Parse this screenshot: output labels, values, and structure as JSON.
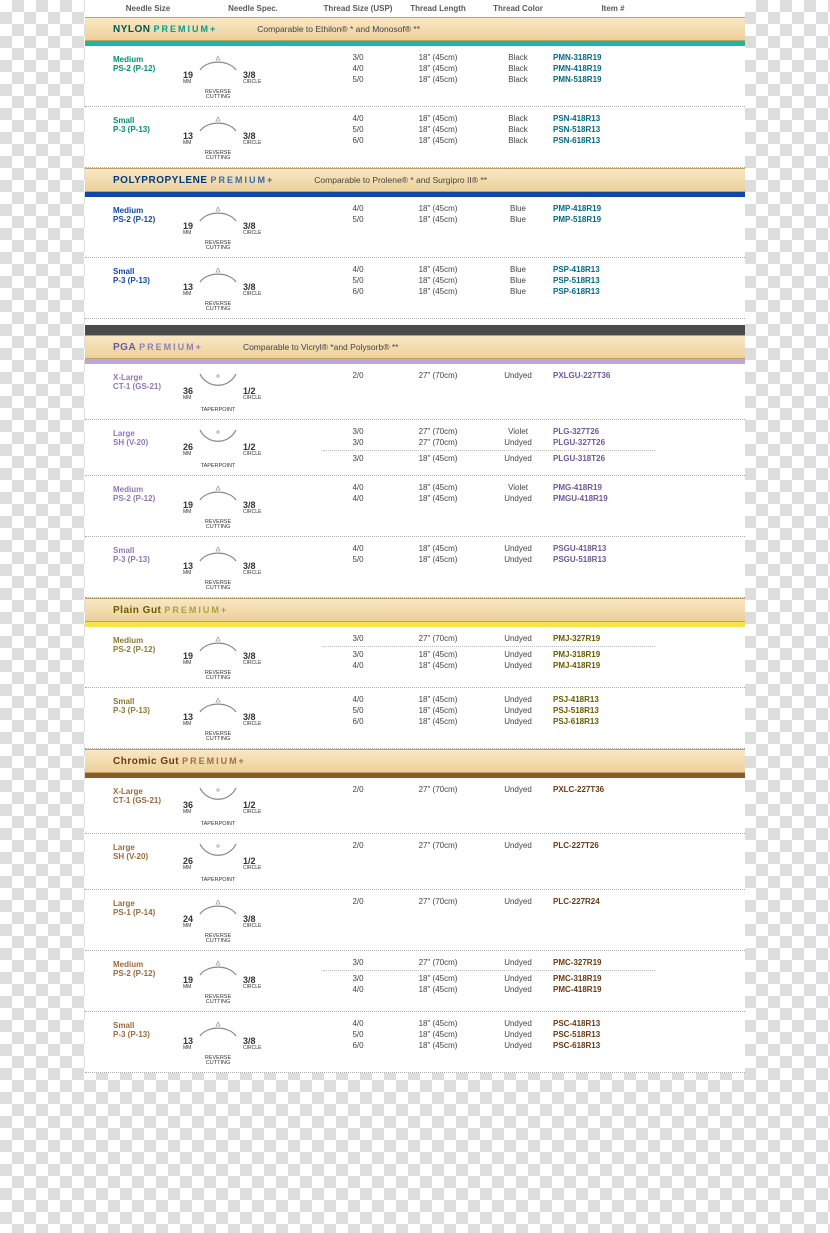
{
  "columns": {
    "needle_size": "Needle Size",
    "needle_spec": "Needle Spec.",
    "thread_size": "Thread Size (USP)",
    "thread_length": "Thread Length",
    "thread_color": "Thread Color",
    "item": "Item #"
  },
  "premium": "PREMIUM+",
  "needle_types": {
    "reverse": "REVERSE\nCUTTING",
    "taper": "TAPERPOINT"
  },
  "circle_lbl": "CIRCLE",
  "mm_lbl": "MM",
  "sections": [
    {
      "title": "NYLON",
      "title_color": "#005a50",
      "prem_color": "#00a090",
      "accent": "#1db6a4",
      "comp": "Comparable to Ethilon® * and Monosof® **",
      "groups": [
        {
          "size_l1": "Medium",
          "size_l2": "PS-2 (P-12)",
          "size_color": "#009070",
          "mm": "19",
          "type": "reverse",
          "frac": "3/8",
          "item_color": "#006a85",
          "rows": [
            {
              "ts": "3/0",
              "tl": "18\" (45cm)",
              "tc": "Black",
              "item": "PMN-318R19"
            },
            {
              "ts": "4/0",
              "tl": "18\" (45cm)",
              "tc": "Black",
              "item": "PMN-418R19"
            },
            {
              "ts": "5/0",
              "tl": "18\" (45cm)",
              "tc": "Black",
              "item": "PMN-518R19"
            }
          ]
        },
        {
          "size_l1": "Small",
          "size_l2": "P-3 (P-13)",
          "size_color": "#009070",
          "mm": "13",
          "type": "reverse",
          "frac": "3/8",
          "item_color": "#006a85",
          "rows": [
            {
              "ts": "4/0",
              "tl": "18\" (45cm)",
              "tc": "Black",
              "item": "PSN-418R13"
            },
            {
              "ts": "5/0",
              "tl": "18\" (45cm)",
              "tc": "Black",
              "item": "PSN-518R13"
            },
            {
              "ts": "6/0",
              "tl": "18\" (45cm)",
              "tc": "Black",
              "item": "PSN-618R13"
            }
          ]
        }
      ]
    },
    {
      "title": "POLYPROPYLENE",
      "title_color": "#003a80",
      "prem_color": "#3a6ab0",
      "accent": "#1347a5",
      "comp": "Comparable to Prolene® * and Surgipro II® **",
      "groups": [
        {
          "size_l1": "Medium",
          "size_l2": "PS-2 (P-12)",
          "size_color": "#1347a5",
          "mm": "19",
          "type": "reverse",
          "frac": "3/8",
          "item_color": "#006a85",
          "rows": [
            {
              "ts": "4/0",
              "tl": "18\" (45cm)",
              "tc": "Blue",
              "item": "PMP-418R19"
            },
            {
              "ts": "5/0",
              "tl": "18\" (45cm)",
              "tc": "Blue",
              "item": "PMP-518R19"
            }
          ]
        },
        {
          "size_l1": "Small",
          "size_l2": "P-3 (P-13)",
          "size_color": "#1347a5",
          "mm": "13",
          "type": "reverse",
          "frac": "3/8",
          "item_color": "#006a85",
          "rows": [
            {
              "ts": "4/0",
              "tl": "18\" (45cm)",
              "tc": "Blue",
              "item": "PSP-418R13"
            },
            {
              "ts": "5/0",
              "tl": "18\" (45cm)",
              "tc": "Blue",
              "item": "PSP-518R13"
            },
            {
              "ts": "6/0",
              "tl": "18\" (45cm)",
              "tc": "Blue",
              "item": "PSP-618R13"
            }
          ]
        }
      ],
      "sep_after": true
    },
    {
      "title": "PGA",
      "title_color": "#6a5a9a",
      "prem_color": "#9080b0",
      "accent": "#b9a8dc",
      "comp": "Comparable to Vicryl® *and Polysorb® **",
      "groups": [
        {
          "size_l1": "X-Large",
          "size_l2": "CT-1 (GS-21)",
          "size_color": "#8a7ab5",
          "mm": "36",
          "type": "taper",
          "frac": "1/2",
          "item_color": "#6a5a9a",
          "rows": [
            {
              "ts": "2/0",
              "tl": "27\" (70cm)",
              "tc": "Undyed",
              "item": "PXLGU-227T36"
            }
          ]
        },
        {
          "size_l1": "Large",
          "size_l2": "SH (V-20)",
          "size_color": "#8a7ab5",
          "mm": "26",
          "type": "taper",
          "frac": "1/2",
          "item_color": "#6a5a9a",
          "rows": [
            {
              "ts": "3/0",
              "tl": "27\" (70cm)",
              "tc": "Violet",
              "item": "PLG-327T26"
            },
            {
              "ts": "3/0",
              "tl": "27\" (70cm)",
              "tc": "Undyed",
              "item": "PLGU-327T26"
            },
            {
              "div": true
            },
            {
              "ts": "3/0",
              "tl": "18\" (45cm)",
              "tc": "Undyed",
              "item": "PLGU-318T26"
            }
          ]
        },
        {
          "size_l1": "Medium",
          "size_l2": "PS-2 (P-12)",
          "size_color": "#8a7ab5",
          "mm": "19",
          "type": "reverse",
          "frac": "3/8",
          "item_color": "#6a5a9a",
          "rows": [
            {
              "ts": "4/0",
              "tl": "18\" (45cm)",
              "tc": "Violet",
              "item": "PMG-418R19"
            },
            {
              "ts": "4/0",
              "tl": "18\" (45cm)",
              "tc": "Undyed",
              "item": "PMGU-418R19"
            }
          ]
        },
        {
          "size_l1": "Small",
          "size_l2": "P-3 (P-13)",
          "size_color": "#8a7ab5",
          "mm": "13",
          "type": "reverse",
          "frac": "3/8",
          "item_color": "#6a5a9a",
          "rows": [
            {
              "ts": "4/0",
              "tl": "18\" (45cm)",
              "tc": "Undyed",
              "item": "PSGU-418R13"
            },
            {
              "ts": "5/0",
              "tl": "18\" (45cm)",
              "tc": "Undyed",
              "item": "PSGU-518R13"
            }
          ]
        }
      ]
    },
    {
      "title": "Plain Gut",
      "title_color": "#6a5a00",
      "prem_color": "#b0a040",
      "accent": "#f5e54a",
      "comp": "",
      "groups": [
        {
          "size_l1": "Medium",
          "size_l2": "PS-2 (P-12)",
          "size_color": "#8a7a30",
          "mm": "19",
          "type": "reverse",
          "frac": "3/8",
          "item_color": "#6a5a00",
          "rows": [
            {
              "ts": "3/0",
              "tl": "27\" (70cm)",
              "tc": "Undyed",
              "item": "PMJ-327R19"
            },
            {
              "div": true
            },
            {
              "ts": "3/0",
              "tl": "18\" (45cm)",
              "tc": "Undyed",
              "item": "PMJ-318R19"
            },
            {
              "ts": "4/0",
              "tl": "18\" (45cm)",
              "tc": "Undyed",
              "item": "PMJ-418R19"
            }
          ]
        },
        {
          "size_l1": "Small",
          "size_l2": "P-3 (P-13)",
          "size_color": "#8a7a30",
          "mm": "13",
          "type": "reverse",
          "frac": "3/8",
          "item_color": "#6a5a00",
          "rows": [
            {
              "ts": "4/0",
              "tl": "18\" (45cm)",
              "tc": "Undyed",
              "item": "PSJ-418R13"
            },
            {
              "ts": "5/0",
              "tl": "18\" (45cm)",
              "tc": "Undyed",
              "item": "PSJ-518R13"
            },
            {
              "ts": "6/0",
              "tl": "18\" (45cm)",
              "tc": "Undyed",
              "item": "PSJ-618R13"
            }
          ]
        }
      ]
    },
    {
      "title": "Chromic Gut",
      "title_color": "#6a3a10",
      "prem_color": "#a07040",
      "accent": "#8a5a2a",
      "comp": "",
      "groups": [
        {
          "size_l1": "X-Large",
          "size_l2": "CT-1 (GS-21)",
          "size_color": "#9a6a3a",
          "mm": "36",
          "type": "taper",
          "frac": "1/2",
          "item_color": "#6a3a10",
          "rows": [
            {
              "ts": "2/0",
              "tl": "27\" (70cm)",
              "tc": "Undyed",
              "item": "PXLC-227T36"
            }
          ]
        },
        {
          "size_l1": "Large",
          "size_l2": "SH (V-20)",
          "size_color": "#9a6a3a",
          "mm": "26",
          "type": "taper",
          "frac": "1/2",
          "item_color": "#6a3a10",
          "rows": [
            {
              "ts": "2/0",
              "tl": "27\" (70cm)",
              "tc": "Undyed",
              "item": "PLC-227T26"
            }
          ]
        },
        {
          "size_l1": "Large",
          "size_l2": "PS-1 (P-14)",
          "size_color": "#9a6a3a",
          "mm": "24",
          "type": "reverse",
          "frac": "3/8",
          "item_color": "#6a3a10",
          "rows": [
            {
              "ts": "2/0",
              "tl": "27\" (70cm)",
              "tc": "Undyed",
              "item": "PLC-227R24"
            }
          ]
        },
        {
          "size_l1": "Medium",
          "size_l2": "PS-2 (P-12)",
          "size_color": "#9a6a3a",
          "mm": "19",
          "type": "reverse",
          "frac": "3/8",
          "item_color": "#6a3a10",
          "rows": [
            {
              "ts": "3/0",
              "tl": "27\" (70cm)",
              "tc": "Undyed",
              "item": "PMC-327R19"
            },
            {
              "div": true
            },
            {
              "ts": "3/0",
              "tl": "18\" (45cm)",
              "tc": "Undyed",
              "item": "PMC-318R19"
            },
            {
              "ts": "4/0",
              "tl": "18\" (45cm)",
              "tc": "Undyed",
              "item": "PMC-418R19"
            }
          ]
        },
        {
          "size_l1": "Small",
          "size_l2": "P-3 (P-13)",
          "size_color": "#9a6a3a",
          "mm": "13",
          "type": "reverse",
          "frac": "3/8",
          "item_color": "#6a3a10",
          "rows": [
            {
              "ts": "4/0",
              "tl": "18\" (45cm)",
              "tc": "Undyed",
              "item": "PSC-418R13"
            },
            {
              "ts": "5/0",
              "tl": "18\" (45cm)",
              "tc": "Undyed",
              "item": "PSC-518R13"
            },
            {
              "ts": "6/0",
              "tl": "18\" (45cm)",
              "tc": "Undyed",
              "item": "PSC-618R13"
            }
          ]
        }
      ]
    }
  ]
}
